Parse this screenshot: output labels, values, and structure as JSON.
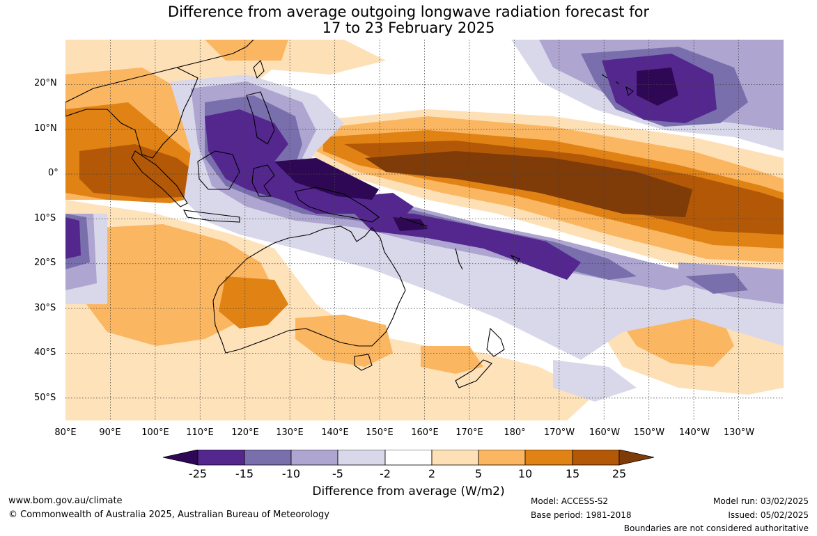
{
  "title": {
    "line1": "Difference from average outgoing longwave radiation forecast for",
    "line2": "17 to 23 February 2025"
  },
  "map": {
    "lat_labels": [
      "20°N",
      "10°N",
      "0°",
      "10°S",
      "20°S",
      "30°S",
      "40°S",
      "50°S"
    ],
    "lon_labels": [
      "80°E",
      "90°E",
      "100°E",
      "110°E",
      "120°E",
      "130°E",
      "140°E",
      "150°E",
      "160°E",
      "170°E",
      "180°",
      "170°W",
      "160°W",
      "150°W",
      "140°W",
      "130°W"
    ],
    "extent": {
      "lon_min": 80,
      "lon_max": 240,
      "lat_min": -55,
      "lat_max": 30
    }
  },
  "colorbar": {
    "ticks": [
      "-25",
      "-15",
      "-10",
      "-5",
      "-2",
      "2",
      "5",
      "10",
      "15",
      "25"
    ],
    "colors": [
      "#2e0854",
      "#54278f",
      "#7a6fad",
      "#aea6d0",
      "#d9d8ea",
      "#ffffff",
      "#fee0b6",
      "#fbb661",
      "#e08214",
      "#b35806",
      "#7f3b08"
    ],
    "label": "Difference from average (W/m2)"
  },
  "footer": {
    "website": "www.bom.gov.au/climate",
    "copyright": "© Commonwealth of Australia 2025, Australian Bureau of Meteorology",
    "model": "Model: ACCESS-S2",
    "base_period": "Base period: 1981-2018",
    "model_run": "Model run: 03/02/2025",
    "issued": "Issued: 05/02/2025",
    "disclaimer": "Boundaries are not considered authoritative"
  }
}
